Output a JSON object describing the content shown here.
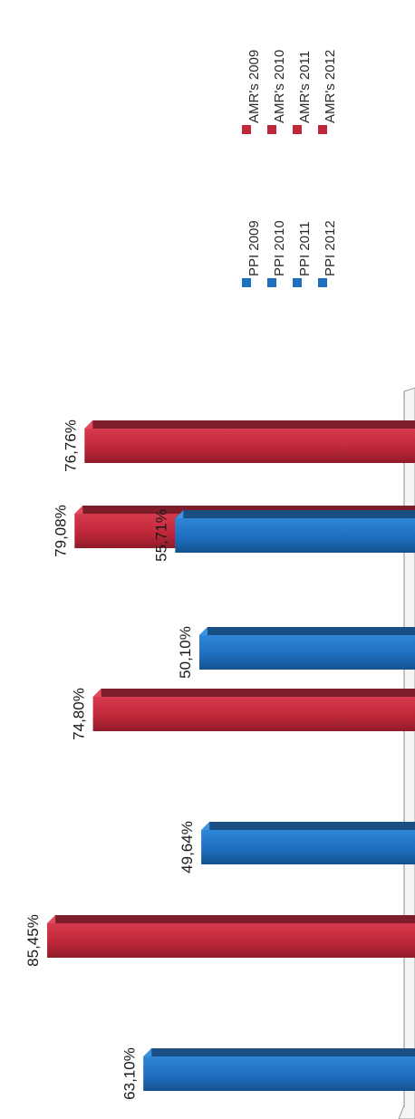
{
  "chart_data": {
    "type": "bar",
    "orientation": "horizontal",
    "three_d": true,
    "categories": [
      "2009",
      "2010",
      "2011",
      "2012"
    ],
    "series": [
      {
        "name": "PPI",
        "color": "#1f6fc1",
        "values": [
          63.1,
          49.64,
          50.1,
          55.71
        ],
        "labels": [
          "63,10%",
          "49,64%",
          "50,10%",
          "55,71%"
        ]
      },
      {
        "name": "AMR's",
        "color": "#c0283a",
        "values": [
          85.45,
          74.8,
          79.08,
          76.76
        ],
        "labels": [
          "85,45%",
          "74,80%",
          "79,08%",
          "76,76%"
        ]
      }
    ],
    "legend": {
      "ppi": [
        "PPI 2009",
        "PPI 2010",
        "PPI 2011",
        "PPI 2012"
      ],
      "amr": [
        "AMR's 2009",
        "AMR's 2010",
        "AMR's 2011",
        "AMR's 2012"
      ]
    },
    "legend_placement": "right",
    "grid": false,
    "value_axis_range": [
      0,
      100
    ],
    "title": "",
    "xlabel": "",
    "ylabel": ""
  }
}
